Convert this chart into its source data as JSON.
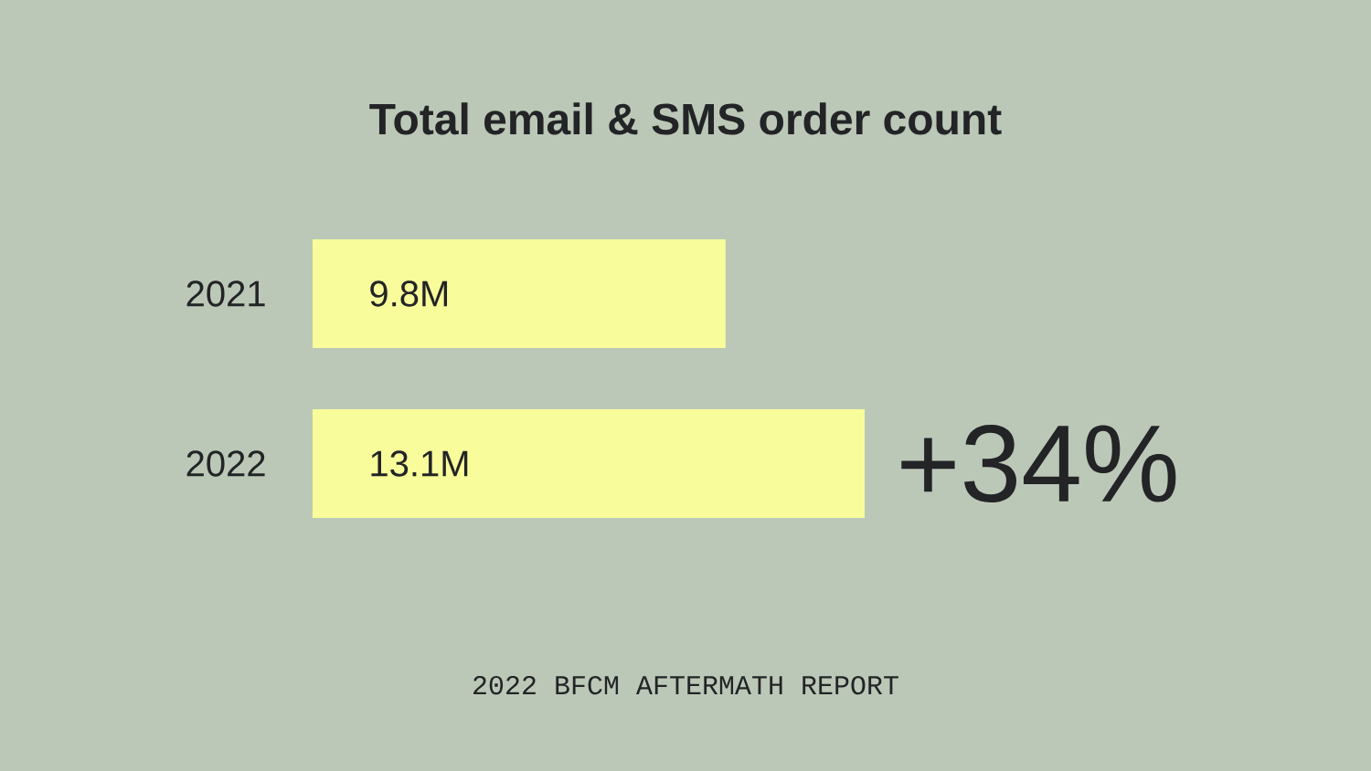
{
  "chart_data": {
    "type": "bar",
    "orientation": "horizontal",
    "title": "Total email & SMS order count",
    "categories": [
      "2021",
      "2022"
    ],
    "values": [
      9.8,
      13.1
    ],
    "value_labels": [
      "9.8M",
      "13.1M"
    ],
    "color": "#f8fc9a",
    "annotations": [
      {
        "text": "+34%",
        "x": 13.1,
        "y": "2022"
      },
      "2022 BFCM AFTERMATH REPORT"
    ]
  }
}
